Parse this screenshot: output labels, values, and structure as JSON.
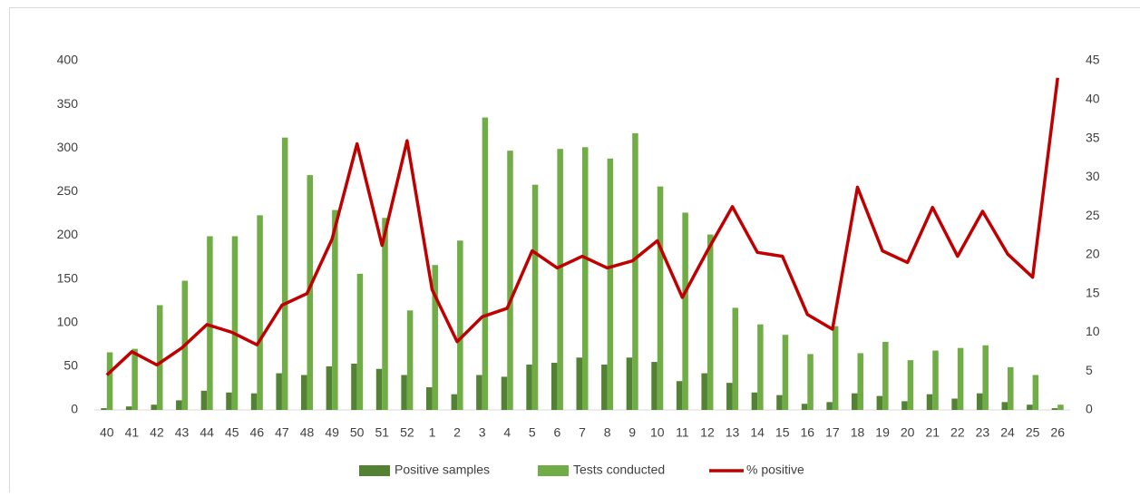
{
  "chart_data": {
    "type": "bar-line",
    "categories": [
      "40",
      "41",
      "42",
      "43",
      "44",
      "45",
      "46",
      "47",
      "48",
      "49",
      "50",
      "51",
      "52",
      "1",
      "2",
      "3",
      "4",
      "5",
      "6",
      "7",
      "8",
      "9",
      "10",
      "11",
      "12",
      "13",
      "14",
      "15",
      "16",
      "17",
      "18",
      "19",
      "20",
      "21",
      "22",
      "23",
      "24",
      "25",
      "26"
    ],
    "series": [
      {
        "name": "Positive samples",
        "type": "bar",
        "color": "#548235",
        "values": [
          2,
          4,
          6,
          11,
          22,
          20,
          19,
          42,
          40,
          50,
          53,
          47,
          40,
          26,
          18,
          40,
          38,
          52,
          54,
          60,
          52,
          60,
          55,
          33,
          42,
          31,
          20,
          17,
          7,
          9,
          19,
          16,
          10,
          18,
          13,
          19,
          9,
          6,
          2
        ]
      },
      {
        "name": "Tests conducted",
        "type": "bar",
        "color": "#70ad47",
        "values": [
          66,
          70,
          120,
          148,
          199,
          199,
          223,
          312,
          269,
          229,
          156,
          220,
          114,
          166,
          194,
          335,
          297,
          258,
          299,
          301,
          288,
          317,
          256,
          226,
          201,
          117,
          98,
          86,
          64,
          96,
          65,
          78,
          57,
          68,
          71,
          74,
          49,
          40,
          6
        ]
      },
      {
        "name": "% positive",
        "type": "line",
        "axis": "y2",
        "color": "#c00000",
        "values": [
          4.5,
          7.5,
          5.8,
          8,
          11,
          10,
          8.4,
          13.5,
          15,
          22,
          34.3,
          21.2,
          34.7,
          15.5,
          8.8,
          12,
          13.1,
          20.5,
          18.3,
          19.8,
          18.3,
          19.2,
          21.8,
          14.5,
          20.5,
          26.2,
          20.3,
          19.8,
          12.3,
          10.4,
          28.7,
          20.5,
          19,
          26.1,
          19.8,
          25.6,
          20.1,
          17.1,
          42.8
        ]
      }
    ],
    "ylim": [
      0,
      400
    ],
    "yticks": [
      0,
      50,
      100,
      150,
      200,
      250,
      300,
      350,
      400
    ],
    "y2lim": [
      0,
      45
    ],
    "y2ticks": [
      0,
      5,
      10,
      15,
      20,
      25,
      30,
      35,
      40,
      45
    ],
    "legend": "bottom"
  }
}
